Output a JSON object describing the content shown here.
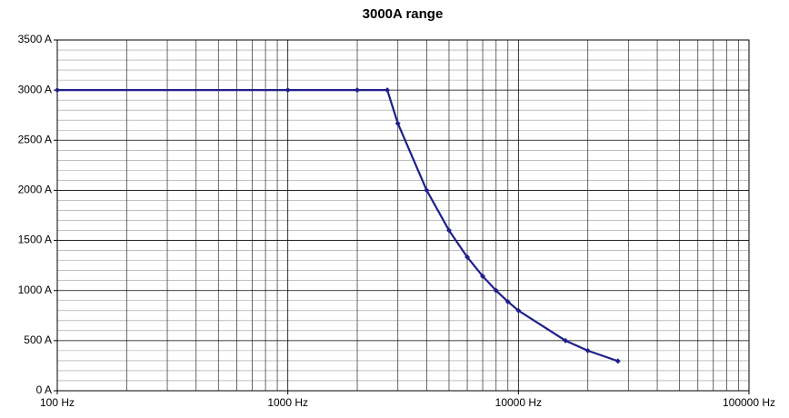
{
  "chart_data": {
    "type": "line",
    "title": "3000A range",
    "x": [
      100,
      1000,
      2000,
      2700,
      3000,
      4000,
      5000,
      6000,
      7000,
      8000,
      9000,
      10000,
      16000,
      20000,
      27000
    ],
    "series": [
      {
        "name": "3000A range",
        "color": "#1f1f8a",
        "values": [
          3000,
          3000,
          3000,
          3000,
          2667,
          2000,
          1600,
          1333,
          1143,
          1000,
          889,
          800,
          500,
          400,
          296
        ]
      }
    ],
    "xlim": [
      100,
      100000
    ],
    "xscale": "log",
    "xticks": [
      {
        "value": 100,
        "label": "100 Hz"
      },
      {
        "value": 1000,
        "label": "1000 Hz"
      },
      {
        "value": 10000,
        "label": "10000 Hz"
      },
      {
        "value": 100000,
        "label": "100000 Hz"
      }
    ],
    "ylim": [
      0,
      3500
    ],
    "yticks": [
      {
        "value": 0,
        "label": "0 A"
      },
      {
        "value": 500,
        "label": "500 A"
      },
      {
        "value": 1000,
        "label": "1000 A"
      },
      {
        "value": 1500,
        "label": "1500 A"
      },
      {
        "value": 2000,
        "label": "2000 A"
      },
      {
        "value": 2500,
        "label": "2500 A"
      },
      {
        "value": 3000,
        "label": "3000 A"
      },
      {
        "value": 3500,
        "label": "3500 A"
      }
    ],
    "grid": true,
    "minor_grid": true
  }
}
